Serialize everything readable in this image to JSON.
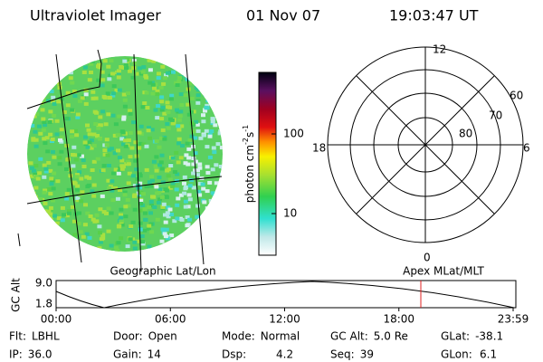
{
  "header": {
    "instrument": "Ultraviolet Imager",
    "date": "01 Nov 07",
    "time": "19:03:47 UT"
  },
  "colorbar": {
    "label_parts": [
      "photon cm",
      "-2",
      "s",
      "-1"
    ],
    "ticks": [
      "100",
      "10"
    ]
  },
  "polar": {
    "clock_labels": [
      "12",
      "6",
      "0",
      "18"
    ],
    "ring_labels": [
      "60",
      "70",
      "80"
    ]
  },
  "altitude_plot": {
    "left_caption": "Geographic Lat/Lon",
    "right_caption": "Apex MLat/MLT",
    "ylabel": "GC Alt",
    "yticks": [
      "9.0",
      "1.8"
    ],
    "xticks": [
      "00:00",
      "06:00",
      "12:00",
      "18:00",
      "23:59"
    ]
  },
  "status": [
    [
      {
        "label": "Flt:",
        "value": "LBHL"
      },
      {
        "label": "Door:",
        "value": "Open"
      },
      {
        "label": "Mode:",
        "value": "Normal"
      },
      {
        "label": "GC Alt:",
        "value": "5.0 Re"
      },
      {
        "label": "GLat:",
        "value": "-38.1"
      }
    ],
    [
      {
        "label": "IP:",
        "value": "36.0"
      },
      {
        "label": "Gain:",
        "value": "14"
      },
      {
        "label": "Dsp:",
        "value": "4.2"
      },
      {
        "label": "Seq:",
        "value": "39"
      },
      {
        "label": "GLon:",
        "value": "6.1"
      }
    ]
  ]
}
